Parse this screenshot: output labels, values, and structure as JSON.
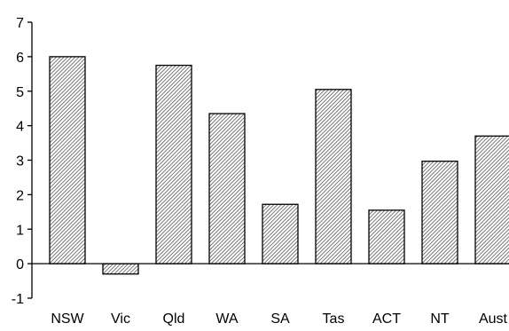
{
  "chart_data": {
    "type": "bar",
    "title": "",
    "xlabel": "",
    "ylabel": "",
    "categories": [
      "NSW",
      "Vic",
      "Qld",
      "WA",
      "SA",
      "Tas",
      "ACT",
      "NT",
      "Aust"
    ],
    "values": [
      6.0,
      -0.3,
      5.75,
      4.35,
      1.72,
      5.05,
      1.55,
      2.97,
      3.7
    ],
    "ylim": [
      -1,
      7
    ],
    "yticks": [
      "-1",
      "0",
      "1",
      "2",
      "3",
      "4",
      "5",
      "6",
      "7"
    ],
    "grid": false,
    "legend": "none",
    "bar_fill": "hatched",
    "bar_stroke": "#000000"
  }
}
